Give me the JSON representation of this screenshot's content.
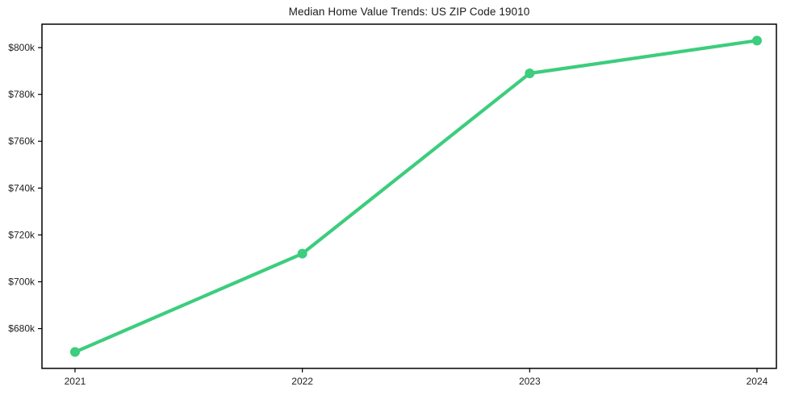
{
  "chart_data": {
    "type": "line",
    "title": "Median Home Value Trends: US ZIP Code 19010",
    "x": [
      2021,
      2022,
      2023,
      2024
    ],
    "x_labels": [
      "2021",
      "2022",
      "2023",
      "2024"
    ],
    "series": [
      {
        "name": "Median Home Value",
        "values": [
          670000,
          712000,
          789000,
          803000
        ],
        "color": "#3ccd7d"
      }
    ],
    "ylim": [
      663000,
      810000
    ],
    "ytick_values": [
      680000,
      700000,
      720000,
      740000,
      760000,
      780000,
      800000
    ],
    "ytick_labels": [
      "$680k",
      "$700k",
      "$720k",
      "$740k",
      "$760k",
      "$780k",
      "$800k"
    ],
    "xlabel": "",
    "ylabel": "",
    "grid": false,
    "legend_visible": false,
    "marker": "circle",
    "line_width": 4.2,
    "marker_radius": 6,
    "background_color": "#ffffff",
    "axis_color": "#000000",
    "text_color": "#1f1f1f"
  }
}
